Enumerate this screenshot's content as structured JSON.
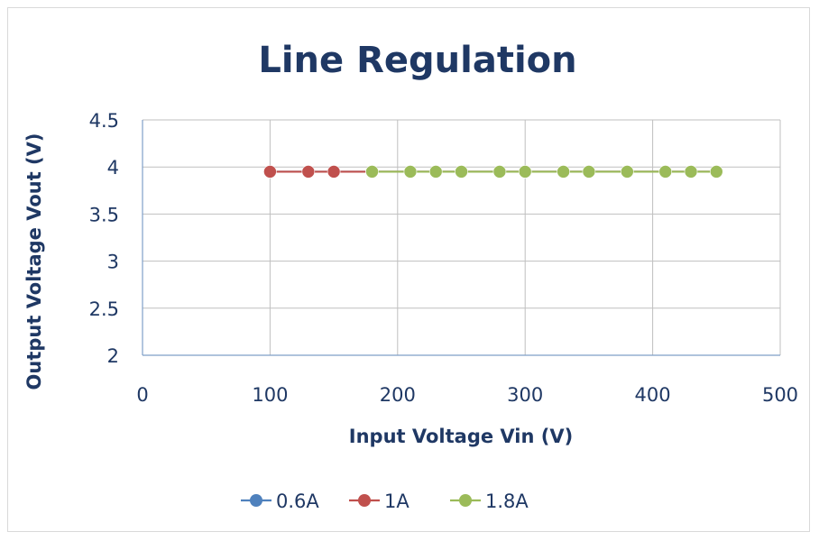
{
  "chart_data": {
    "type": "line",
    "title": "Line Regulation",
    "xlabel": "Input Voltage Vin (V)",
    "ylabel": "Output Voltage Vout (V)",
    "xlim": [
      0,
      500
    ],
    "ylim": [
      2,
      4.5
    ],
    "x_ticks": [
      0,
      100,
      200,
      300,
      400,
      500
    ],
    "y_ticks": [
      2,
      2.5,
      3,
      3.5,
      4,
      4.5
    ],
    "y_tick_labels": [
      "2",
      "2.5",
      "3",
      "3.5",
      "4",
      "4.5"
    ],
    "grid": "vertical and horizontal major gridlines",
    "legend_position": "bottom",
    "series": [
      {
        "name": "0.6A",
        "color": "#4f81bd",
        "points": [
          [
            100,
            3.95
          ],
          [
            130,
            3.95
          ],
          [
            150,
            3.95
          ],
          [
            180,
            3.95
          ],
          [
            210,
            3.95
          ],
          [
            230,
            3.95
          ],
          [
            250,
            3.95
          ],
          [
            280,
            3.95
          ],
          [
            300,
            3.95
          ],
          [
            330,
            3.95
          ],
          [
            350,
            3.95
          ],
          [
            380,
            3.95
          ],
          [
            410,
            3.95
          ],
          [
            430,
            3.95
          ],
          [
            450,
            3.95
          ]
        ]
      },
      {
        "name": "1A",
        "color": "#c0504d",
        "points": [
          [
            100,
            3.95
          ],
          [
            130,
            3.95
          ],
          [
            150,
            3.95
          ],
          [
            180,
            3.95
          ],
          [
            210,
            3.95
          ],
          [
            230,
            3.95
          ],
          [
            250,
            3.95
          ],
          [
            280,
            3.95
          ],
          [
            300,
            3.95
          ],
          [
            330,
            3.95
          ],
          [
            350,
            3.95
          ],
          [
            380,
            3.95
          ],
          [
            410,
            3.95
          ],
          [
            430,
            3.95
          ],
          [
            450,
            3.95
          ]
        ]
      },
      {
        "name": "1.8A",
        "color": "#9bbb59",
        "points": [
          [
            180,
            3.95
          ],
          [
            210,
            3.95
          ],
          [
            230,
            3.95
          ],
          [
            250,
            3.95
          ],
          [
            280,
            3.95
          ],
          [
            300,
            3.95
          ],
          [
            330,
            3.95
          ],
          [
            350,
            3.95
          ],
          [
            380,
            3.95
          ],
          [
            410,
            3.95
          ],
          [
            430,
            3.95
          ],
          [
            450,
            3.95
          ]
        ]
      }
    ]
  }
}
